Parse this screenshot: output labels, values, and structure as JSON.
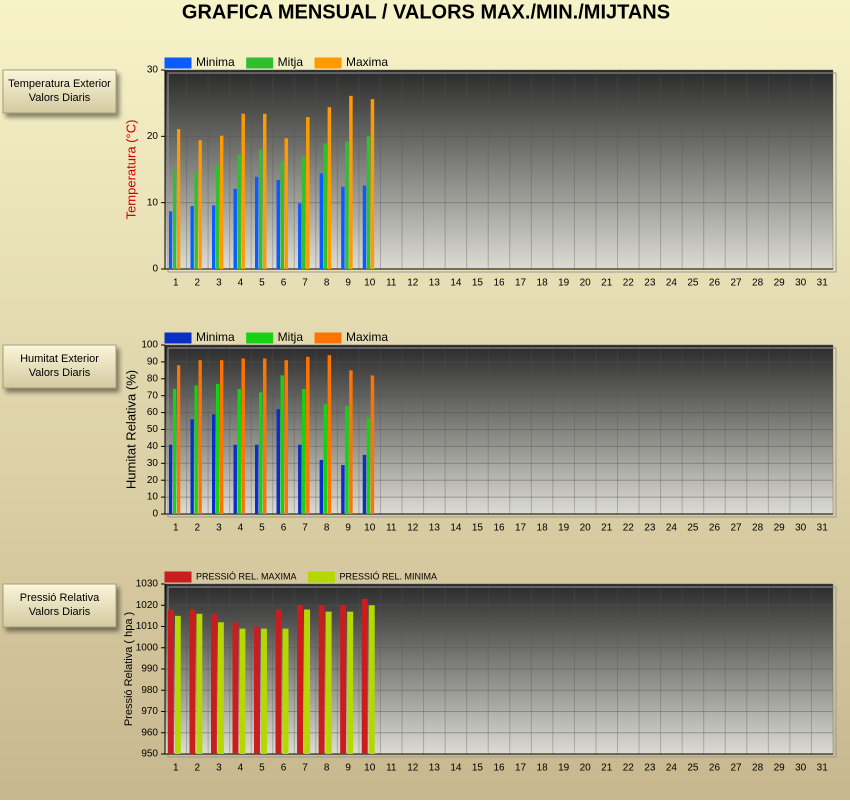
{
  "title": "GRAFICA MENSUAL / VALORS MAX./MIN./MIJTANS",
  "buttons": [
    {
      "lines": [
        "Temperatura Exterior",
        "Valors Diaris"
      ]
    },
    {
      "lines": [
        "Humitat Exterior",
        "Valors Diaris"
      ]
    },
    {
      "lines": [
        "Pressió Relativa",
        "Valors Diaris"
      ]
    }
  ],
  "chart_data": [
    {
      "type": "bar",
      "ylabel": "Temperatura (°C)",
      "ylabel_color": "#cc0000",
      "categories": [
        "1",
        "2",
        "3",
        "4",
        "5",
        "6",
        "7",
        "8",
        "9",
        "10",
        "11",
        "12",
        "13",
        "14",
        "15",
        "16",
        "17",
        "18",
        "19",
        "20",
        "21",
        "22",
        "23",
        "24",
        "25",
        "26",
        "27",
        "28",
        "29",
        "30",
        "31"
      ],
      "ylim": [
        0,
        30
      ],
      "yticks": [
        0,
        10,
        20,
        30
      ],
      "grid": true,
      "series": [
        {
          "name": "Minima",
          "color": "#0a5cff",
          "values": [
            8.7,
            9.5,
            9.6,
            12.1,
            13.9,
            13.4,
            9.9,
            14.4,
            12.4,
            12.6,
            null,
            null,
            null,
            null,
            null,
            null,
            null,
            null,
            null,
            null,
            null,
            null,
            null,
            null,
            null,
            null,
            null,
            null,
            null,
            null,
            null
          ]
        },
        {
          "name": "Mitja",
          "color": "#2fbf2f",
          "values": [
            15.0,
            14.7,
            15.7,
            17.2,
            18.0,
            16.2,
            16.9,
            18.9,
            19.2,
            20.0,
            null,
            null,
            null,
            null,
            null,
            null,
            null,
            null,
            null,
            null,
            null,
            null,
            null,
            null,
            null,
            null,
            null,
            null,
            null,
            null,
            null
          ]
        },
        {
          "name": "Maxima",
          "color": "#ff9a00",
          "values": [
            21.1,
            19.4,
            20.1,
            23.4,
            23.4,
            19.7,
            22.9,
            24.4,
            26.1,
            25.6,
            null,
            null,
            null,
            null,
            null,
            null,
            null,
            null,
            null,
            null,
            null,
            null,
            null,
            null,
            null,
            null,
            null,
            null,
            null,
            null,
            null
          ]
        }
      ]
    },
    {
      "type": "bar",
      "ylabel": "Humitat Relativa (%)",
      "ylabel_color": "#000000",
      "categories": [
        "1",
        "2",
        "3",
        "4",
        "5",
        "6",
        "7",
        "8",
        "9",
        "10",
        "11",
        "12",
        "13",
        "14",
        "15",
        "16",
        "17",
        "18",
        "19",
        "20",
        "21",
        "22",
        "23",
        "24",
        "25",
        "26",
        "27",
        "28",
        "29",
        "30",
        "31"
      ],
      "ylim": [
        0,
        100
      ],
      "yticks": [
        0,
        10,
        20,
        30,
        40,
        50,
        60,
        70,
        80,
        90,
        100
      ],
      "grid": true,
      "series": [
        {
          "name": "Minima",
          "color": "#0a2fc8",
          "values": [
            41,
            56,
            59,
            41,
            41,
            62,
            41,
            32,
            29,
            35,
            null,
            null,
            null,
            null,
            null,
            null,
            null,
            null,
            null,
            null,
            null,
            null,
            null,
            null,
            null,
            null,
            null,
            null,
            null,
            null,
            null
          ]
        },
        {
          "name": "Mitja",
          "color": "#14d214",
          "values": [
            74,
            76,
            77,
            74,
            72,
            82,
            74,
            65,
            64,
            57,
            null,
            null,
            null,
            null,
            null,
            null,
            null,
            null,
            null,
            null,
            null,
            null,
            null,
            null,
            null,
            null,
            null,
            null,
            null,
            null,
            null
          ]
        },
        {
          "name": "Maxima",
          "color": "#ff7400",
          "values": [
            88,
            91,
            91,
            92,
            92,
            91,
            93,
            94,
            85,
            82,
            null,
            null,
            null,
            null,
            null,
            null,
            null,
            null,
            null,
            null,
            null,
            null,
            null,
            null,
            null,
            null,
            null,
            null,
            null,
            null,
            null
          ]
        }
      ]
    },
    {
      "type": "bar",
      "ylabel": "Pressió Relativa ( hpa )",
      "ylabel_color": "#000000",
      "categories": [
        "1",
        "2",
        "3",
        "4",
        "5",
        "6",
        "7",
        "8",
        "9",
        "10",
        "11",
        "12",
        "13",
        "14",
        "15",
        "16",
        "17",
        "18",
        "19",
        "20",
        "21",
        "22",
        "23",
        "24",
        "25",
        "26",
        "27",
        "28",
        "29",
        "30",
        "31"
      ],
      "ylim": [
        950,
        1030
      ],
      "yticks": [
        950,
        960,
        970,
        980,
        990,
        1000,
        1010,
        1020,
        1030
      ],
      "grid": true,
      "series": [
        {
          "name": "PRESSIÓ REL. MAXIMA",
          "color": "#c81e1e",
          "values": [
            1018,
            1018,
            1016,
            1012,
            1010,
            1018,
            1020,
            1020,
            1020,
            1023,
            null,
            null,
            null,
            null,
            null,
            null,
            null,
            null,
            null,
            null,
            null,
            null,
            null,
            null,
            null,
            null,
            null,
            null,
            null,
            null,
            null
          ]
        },
        {
          "name": "PRESSIÓ REL. MINIMA",
          "color": "#b4d800",
          "values": [
            1015,
            1016,
            1012,
            1009,
            1009,
            1009,
            1018,
            1017,
            1017,
            1020,
            null,
            null,
            null,
            null,
            null,
            null,
            null,
            null,
            null,
            null,
            null,
            null,
            null,
            null,
            null,
            null,
            null,
            null,
            null,
            null,
            null
          ]
        }
      ]
    }
  ]
}
